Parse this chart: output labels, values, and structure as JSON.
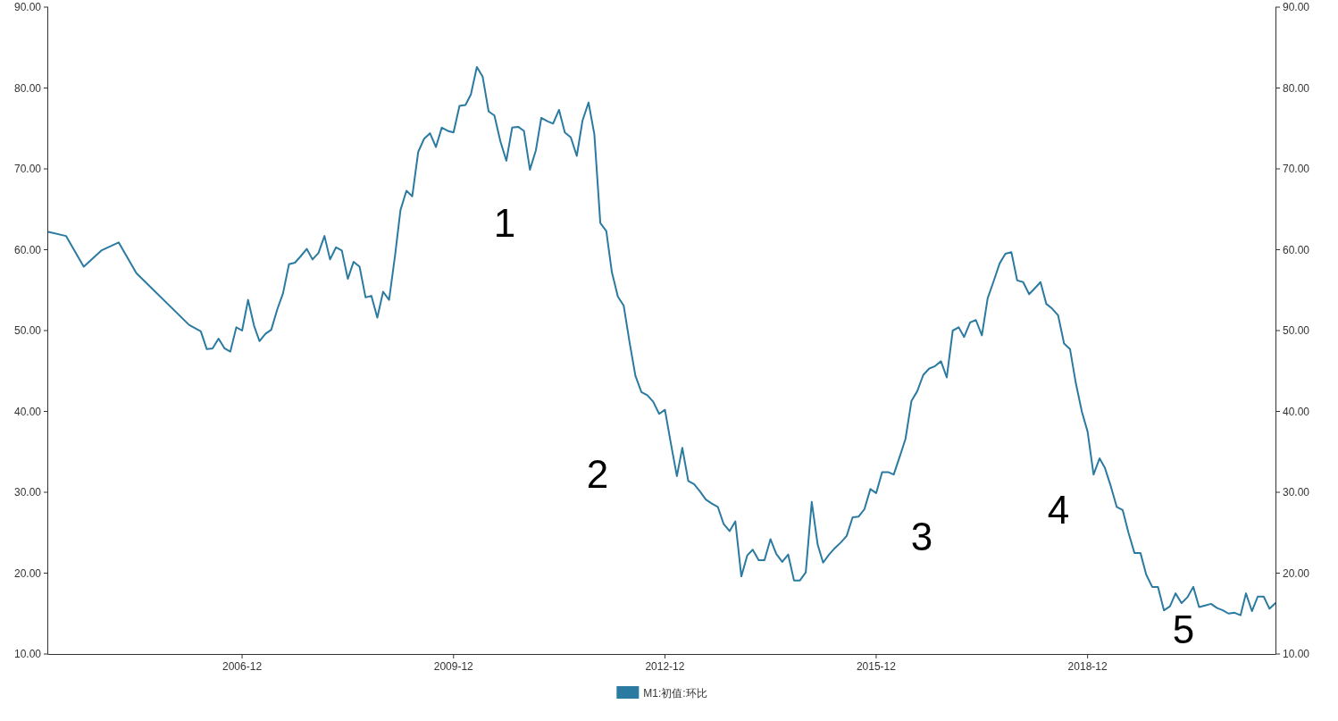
{
  "chart_data": {
    "type": "line",
    "x": [
      "2004-03",
      "2004-06",
      "2004-09",
      "2004-12",
      "2005-03",
      "2005-06",
      "2006-03",
      "2006-05",
      "2006-06",
      "2006-07",
      "2006-08",
      "2006-09",
      "2006-10",
      "2006-11",
      "2006-12",
      "2007-01",
      "2007-02",
      "2007-03",
      "2007-04",
      "2007-05",
      "2007-06",
      "2007-07",
      "2007-08",
      "2007-09",
      "2007-10",
      "2007-11",
      "2007-12",
      "2008-01",
      "2008-02",
      "2008-03",
      "2008-04",
      "2008-05",
      "2008-06",
      "2008-07",
      "2008-08",
      "2008-09",
      "2008-10",
      "2008-11",
      "2008-12",
      "2009-01",
      "2009-02",
      "2009-03",
      "2009-04",
      "2009-05",
      "2009-06",
      "2009-07",
      "2009-08",
      "2009-09",
      "2009-10",
      "2009-11",
      "2009-12",
      "2010-01",
      "2010-02",
      "2010-03",
      "2010-04",
      "2010-05",
      "2010-06",
      "2010-07",
      "2010-08",
      "2010-09",
      "2010-10",
      "2010-11",
      "2010-12",
      "2011-01",
      "2011-02",
      "2011-03",
      "2011-04",
      "2011-05",
      "2011-06",
      "2011-07",
      "2011-08",
      "2011-09",
      "2011-10",
      "2011-11",
      "2011-12",
      "2012-01",
      "2012-02",
      "2012-03",
      "2012-04",
      "2012-05",
      "2012-06",
      "2012-07",
      "2012-08",
      "2012-09",
      "2012-10",
      "2012-11",
      "2012-12",
      "2013-01",
      "2013-02",
      "2013-03",
      "2013-04",
      "2013-05",
      "2013-06",
      "2013-07",
      "2013-08",
      "2013-09",
      "2013-10",
      "2013-11",
      "2013-12",
      "2014-01",
      "2014-02",
      "2014-03",
      "2014-04",
      "2014-05",
      "2014-06",
      "2014-07",
      "2014-08",
      "2014-09",
      "2014-10",
      "2014-11",
      "2014-12",
      "2015-01",
      "2015-02",
      "2015-03",
      "2015-04",
      "2015-05",
      "2015-06",
      "2015-07",
      "2015-08",
      "2015-09",
      "2015-10",
      "2015-11",
      "2015-12",
      "2016-01",
      "2016-02",
      "2016-03",
      "2016-04",
      "2016-05",
      "2016-06",
      "2016-07",
      "2016-08",
      "2016-09",
      "2016-10",
      "2016-11",
      "2016-12",
      "2017-01",
      "2017-02",
      "2017-03",
      "2017-04",
      "2017-05",
      "2017-06",
      "2017-07",
      "2017-08",
      "2017-09",
      "2017-10",
      "2017-11",
      "2017-12",
      "2018-01",
      "2018-02",
      "2018-03",
      "2018-04",
      "2018-05",
      "2018-06",
      "2018-07",
      "2018-08",
      "2018-09",
      "2018-10",
      "2018-11",
      "2018-12",
      "2019-01",
      "2019-02",
      "2019-03",
      "2019-04",
      "2019-05",
      "2019-06",
      "2019-07",
      "2019-08",
      "2019-09",
      "2019-10",
      "2019-11",
      "2019-12",
      "2020-01",
      "2020-02",
      "2020-03",
      "2020-04",
      "2020-05",
      "2020-06",
      "2020-07",
      "2020-08",
      "2020-09",
      "2020-10",
      "2020-11",
      "2020-12",
      "2021-01",
      "2021-02",
      "2021-03",
      "2021-04",
      "2021-05",
      "2021-06",
      "2021-07",
      "2021-08"
    ],
    "series": [
      {
        "name": "M1:初值:环比",
        "color": "#2b7aa1",
        "values": [
          62.2,
          61.7,
          57.9,
          59.9,
          60.9,
          57.1,
          50.7,
          49.9,
          47.7,
          47.8,
          49.0,
          47.8,
          47.4,
          50.4,
          50.0,
          53.8,
          50.6,
          48.7,
          49.6,
          50.1,
          52.6,
          54.6,
          58.2,
          58.4,
          59.2,
          60.1,
          58.8,
          59.6,
          61.7,
          58.8,
          60.3,
          59.9,
          56.4,
          58.5,
          57.9,
          54.1,
          54.3,
          51.6,
          54.8,
          53.8,
          59.3,
          64.9,
          67.3,
          66.6,
          72.1,
          73.7,
          74.4,
          72.7,
          75.1,
          74.7,
          74.5,
          77.8,
          77.9,
          79.2,
          82.6,
          81.4,
          77.1,
          76.6,
          73.4,
          71.0,
          75.1,
          75.2,
          74.7,
          69.9,
          72.3,
          76.3,
          75.9,
          75.6,
          77.3,
          74.5,
          73.9,
          71.6,
          76.0,
          78.2,
          74.3,
          63.3,
          62.3,
          57.2,
          54.2,
          53.1,
          48.5,
          44.4,
          42.4,
          42.0,
          41.2,
          39.7,
          40.2,
          36.0,
          32.0,
          35.5,
          31.4,
          31.0,
          30.1,
          29.1,
          28.6,
          28.2,
          26.1,
          25.2,
          26.4,
          19.6,
          22.2,
          22.9,
          21.6,
          21.6,
          24.2,
          22.4,
          21.4,
          22.3,
          19.1,
          19.1,
          20.1,
          28.8,
          23.5,
          21.3,
          22.3,
          23.1,
          23.8,
          24.6,
          26.9,
          27.0,
          27.9,
          30.4,
          29.9,
          32.5,
          32.5,
          32.2,
          34.4,
          36.6,
          41.3,
          42.5,
          44.5,
          45.3,
          45.6,
          46.2,
          44.2,
          50.0,
          50.4,
          49.2,
          51.0,
          51.3,
          49.4,
          54.0,
          56.1,
          58.3,
          59.5,
          59.7,
          56.2,
          56.0,
          54.5,
          55.2,
          56.0,
          53.3,
          52.7,
          51.9,
          48.4,
          47.7,
          43.5,
          40.0,
          37.5,
          32.2,
          34.2,
          33.0,
          30.7,
          28.2,
          27.8,
          25.0,
          22.5,
          22.5,
          19.8,
          18.3,
          18.3,
          15.4,
          15.9,
          17.5,
          16.3,
          17.0,
          18.3,
          15.8,
          16.0,
          16.2,
          15.7,
          15.4,
          15.0,
          15.1,
          14.8,
          17.5,
          15.3,
          17.1,
          17.1,
          15.6,
          16.3
        ]
      }
    ],
    "xlim": [
      "2004-03",
      "2021-08"
    ],
    "xticks": [
      "2006-12",
      "2009-12",
      "2012-12",
      "2015-12",
      "2018-12"
    ],
    "ylim": [
      10,
      90
    ],
    "yticks": [
      {
        "value": 10,
        "label": "10.00"
      },
      {
        "value": 20,
        "label": "20.00"
      },
      {
        "value": 30,
        "label": "30.00"
      },
      {
        "value": 40,
        "label": "40.00"
      },
      {
        "value": 50,
        "label": "50.00"
      },
      {
        "value": 60,
        "label": "60.00"
      },
      {
        "value": 70,
        "label": "70.00"
      },
      {
        "value": 80,
        "label": "80.00"
      },
      {
        "value": 90,
        "label": "90.00"
      }
    ],
    "y2lim": [
      10,
      90
    ],
    "y2ticks": [
      {
        "value": 10,
        "label": "10.00"
      },
      {
        "value": 20,
        "label": "20.00"
      },
      {
        "value": 30,
        "label": "30.00"
      },
      {
        "value": 40,
        "label": "40.00"
      },
      {
        "value": 50,
        "label": "50.00"
      },
      {
        "value": 60,
        "label": "60.00"
      },
      {
        "value": 70,
        "label": "70.00"
      },
      {
        "value": 80,
        "label": "80.00"
      },
      {
        "value": 90,
        "label": "90.00"
      }
    ],
    "grid": false,
    "legend": "bottom",
    "marker": "none",
    "line_style": "solid",
    "annotations": [
      "1",
      "2",
      "3",
      "4",
      "5"
    ]
  }
}
